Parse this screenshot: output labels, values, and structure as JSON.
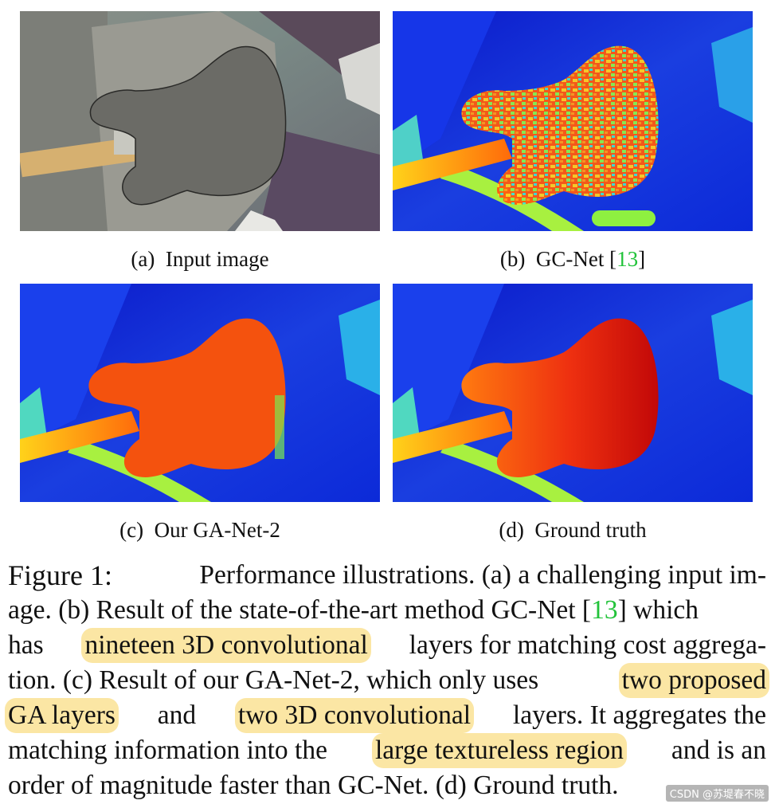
{
  "panels": [
    {
      "letter": "(a)",
      "label": "Input image"
    },
    {
      "letter": "(b)",
      "label": "GC-Net [",
      "cite": "13",
      "close": "]"
    },
    {
      "letter": "(c)",
      "label": "Our GA-Net-2"
    },
    {
      "letter": "(d)",
      "label": "Ground truth"
    }
  ],
  "caption": {
    "figure_label": "Figure 1:",
    "line1": "Performance illustrations. (a) a challenging input im-",
    "line2a": "age. (b) Result of the state-of-the-art method GC-Net [",
    "line2_cite": "13",
    "line2b": "] which",
    "line3_hl": "nineteen 3D convolutional",
    "line3b": "layers for matching cost aggrega-",
    "line3a": "has",
    "line4a": "tion. (c) Result of our GA-Net-2, which only uses",
    "line4_hl": "two proposed",
    "line5_hl1": "GA layers",
    "line5b": "and",
    "line5_hl2": "two 3D convolutional",
    "line5c": "layers.  It aggregates the",
    "line6a": "matching information into the",
    "line6_hl": "large textureless region",
    "line6b": "and is an",
    "line7": "order of magnitude faster than GC-Net. (d) Ground truth."
  },
  "watermark": "CSDN @苏堤春不晓",
  "colors": {
    "highlight": "#fbe6a4",
    "citation": "#22c33a",
    "disparity_far": "#1020d0",
    "disparity_near": "#e02010"
  }
}
